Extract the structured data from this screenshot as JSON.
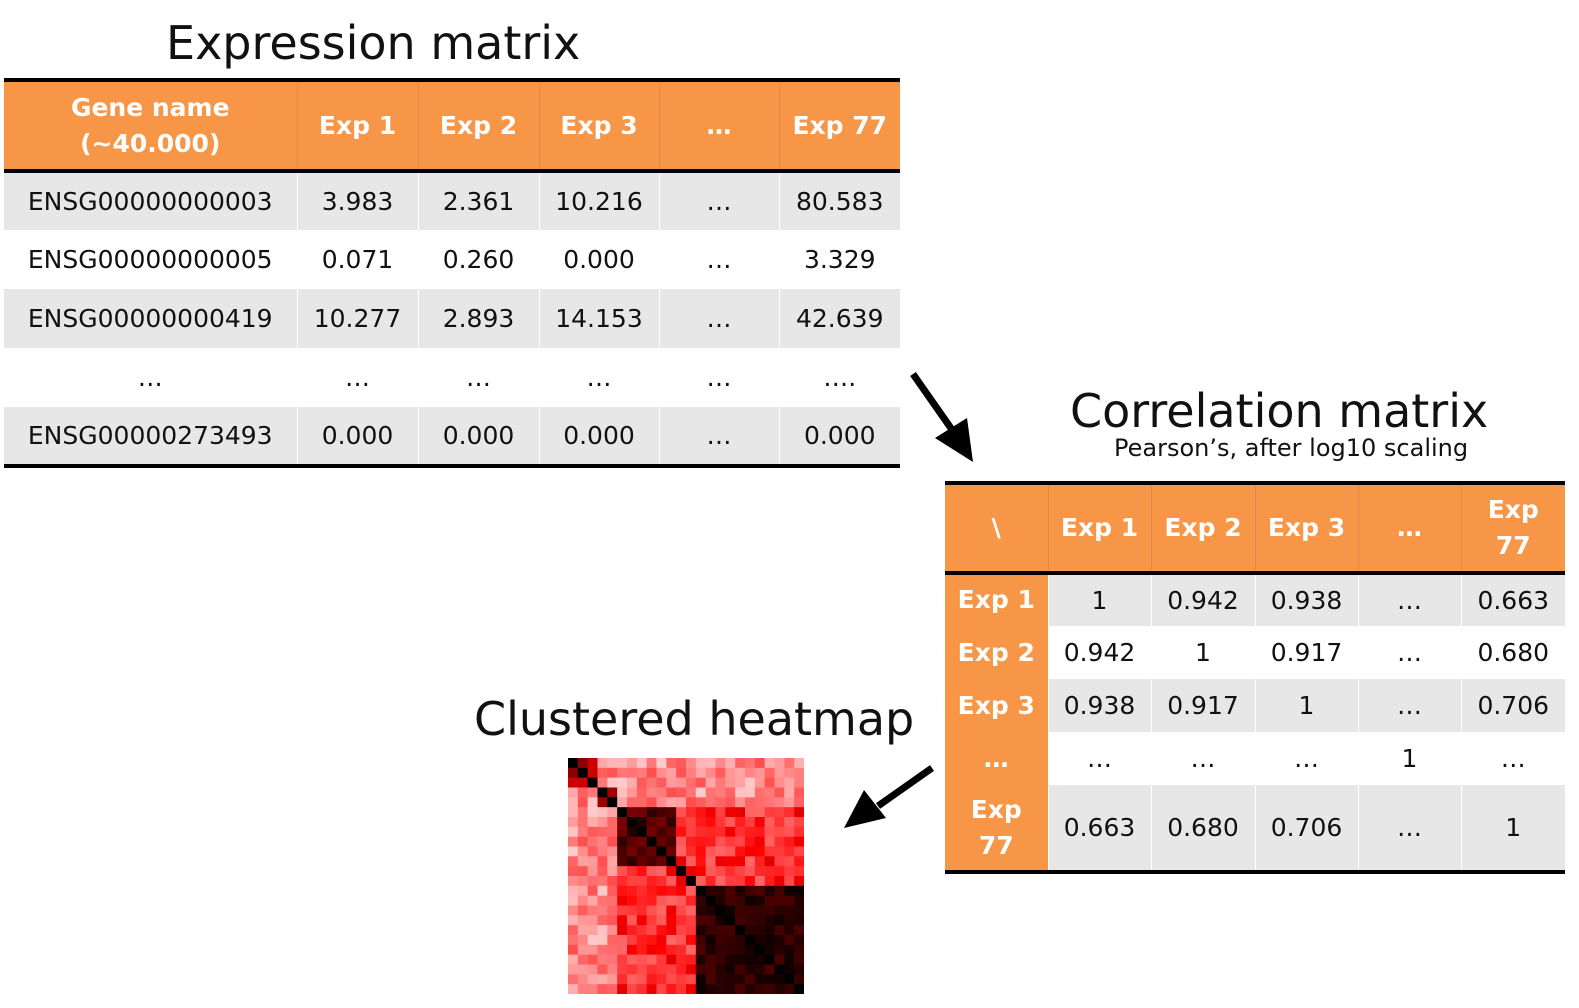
{
  "expression": {
    "title": "Expression matrix",
    "headers": [
      "Gene name (~40.000)",
      "Exp 1",
      "Exp 2",
      "Exp 3",
      "…",
      "Exp 77"
    ],
    "rows": [
      [
        "ENSG00000000003",
        "3.983",
        "2.361",
        "10.216",
        "…",
        "80.583"
      ],
      [
        "ENSG00000000005",
        "0.071",
        "0.260",
        "0.000",
        "…",
        "3.329"
      ],
      [
        "ENSG00000000419",
        "10.277",
        "2.893",
        "14.153",
        "…",
        "42.639"
      ],
      [
        "…",
        "…",
        "…",
        "…",
        "…",
        "…."
      ],
      [
        "ENSG00000273493",
        "0.000",
        "0.000",
        "0.000",
        "…",
        "0.000"
      ]
    ]
  },
  "correlation": {
    "title": "Correlation matrix",
    "subtitle": "Pearson’s, after log10 scaling",
    "headers": [
      "\\",
      "Exp 1",
      "Exp 2",
      "Exp 3",
      "…",
      "Exp 77"
    ],
    "rows": [
      {
        "label": "Exp 1",
        "cells": [
          "1",
          "0.942",
          "0.938",
          "…",
          "0.663"
        ]
      },
      {
        "label": "Exp 2",
        "cells": [
          "0.942",
          "1",
          "0.917",
          "…",
          "0.680"
        ]
      },
      {
        "label": "Exp 3",
        "cells": [
          "0.938",
          "0.917",
          "1",
          "…",
          "0.706"
        ]
      },
      {
        "label": "…",
        "cells": [
          "…",
          "…",
          "…",
          "1",
          "…"
        ]
      },
      {
        "label": "Exp 77",
        "cells": [
          "0.663",
          "0.680",
          "0.706",
          "…",
          "1"
        ]
      }
    ]
  },
  "heatmap": {
    "title": "Clustered heatmap",
    "colors": {
      "low": "#ffffff",
      "mid": "#ff0000",
      "high": "#000000"
    }
  },
  "colors": {
    "header_bg": "#f79646",
    "header_text": "#ffffff",
    "row_stripe": "#e7e7e7",
    "rule": "#000000"
  }
}
